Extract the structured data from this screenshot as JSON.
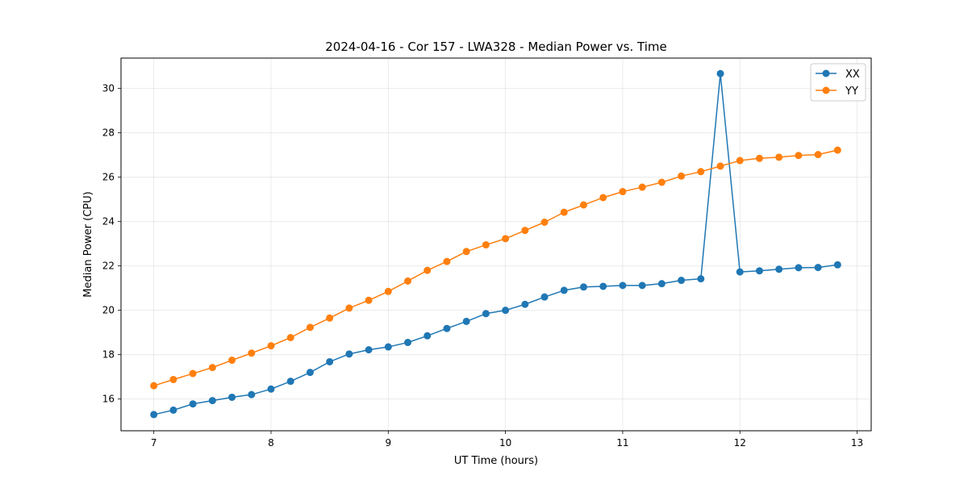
{
  "chart_data": {
    "type": "line",
    "title": "2024-04-16 - Cor 157 - LWA328 - Median Power vs. Time",
    "xlabel": "UT Time (hours)",
    "ylabel": "Median Power (CPU)",
    "xlim": [
      6.72,
      13.12
    ],
    "ylim": [
      14.57,
      31.37
    ],
    "xticks": [
      7,
      8,
      9,
      10,
      11,
      12,
      13
    ],
    "yticks": [
      16,
      18,
      20,
      22,
      24,
      26,
      28,
      30
    ],
    "grid": true,
    "legend_position": "top-right",
    "x": [
      7.0,
      7.1667,
      7.3333,
      7.5,
      7.6667,
      7.8333,
      8.0,
      8.1667,
      8.3333,
      8.5,
      8.6667,
      8.8333,
      9.0,
      9.1667,
      9.3333,
      9.5,
      9.6667,
      9.8333,
      10.0,
      10.1667,
      10.3333,
      10.5,
      10.6667,
      10.8333,
      11.0,
      11.1667,
      11.3333,
      11.5,
      11.6667,
      11.8333,
      12.0,
      12.1667,
      12.3333,
      12.5,
      12.6667,
      12.8333
    ],
    "series": [
      {
        "name": "XX",
        "color": "#1f77b4",
        "values": [
          15.3,
          15.5,
          15.78,
          15.93,
          16.08,
          16.2,
          16.45,
          16.8,
          17.2,
          17.68,
          18.03,
          18.22,
          18.35,
          18.55,
          18.85,
          19.18,
          19.5,
          19.85,
          20.0,
          20.27,
          20.6,
          20.9,
          21.05,
          21.08,
          21.12,
          21.12,
          21.2,
          21.35,
          21.42,
          30.67,
          21.73,
          21.78,
          21.85,
          21.92,
          21.93,
          22.05
        ]
      },
      {
        "name": "YY",
        "color": "#ff7f0e",
        "values": [
          16.6,
          16.88,
          17.15,
          17.42,
          17.75,
          18.07,
          18.4,
          18.77,
          19.23,
          19.65,
          20.1,
          20.45,
          20.85,
          21.32,
          21.8,
          22.2,
          22.65,
          22.95,
          23.23,
          23.6,
          23.97,
          24.42,
          24.75,
          25.08,
          25.35,
          25.55,
          25.77,
          26.05,
          26.25,
          26.5,
          26.75,
          26.85,
          26.9,
          26.98,
          27.02,
          27.22
        ]
      }
    ]
  }
}
